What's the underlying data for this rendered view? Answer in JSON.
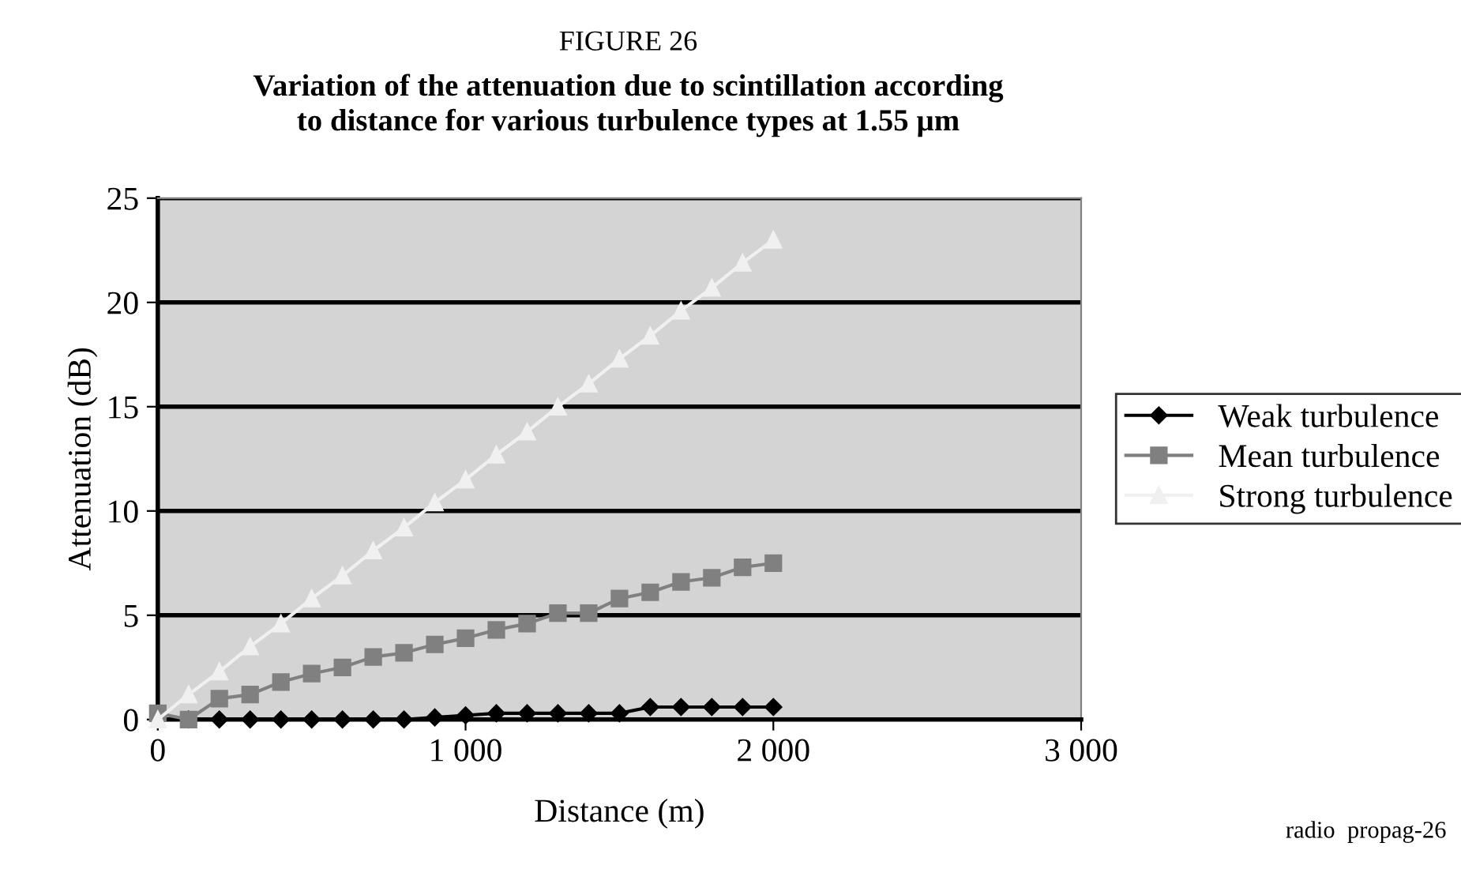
{
  "chart_data": {
    "type": "line",
    "title": "Variation of the attenuation due to scintillation according\nto distance for various turbulence types at 1.55 µm",
    "subtitle": "FIGURE 26",
    "xlabel": "Distance (m)",
    "ylabel": "Attenuation (dB)",
    "x": [
      0,
      100,
      200,
      300,
      400,
      500,
      600,
      700,
      800,
      900,
      1000,
      1100,
      1200,
      1300,
      1400,
      1500,
      1600,
      1700,
      1800,
      1900,
      2000
    ],
    "series": [
      {
        "name": "Weak turbulence",
        "color": "#000000",
        "marker": "diamond",
        "values": [
          0,
          0,
          0,
          0,
          0,
          0,
          0,
          0,
          0,
          0.1,
          0.2,
          0.3,
          0.3,
          0.3,
          0.3,
          0.3,
          0.6,
          0.6,
          0.6,
          0.6,
          0.6
        ]
      },
      {
        "name": "Mean turbulence",
        "color": "#808080",
        "marker": "square",
        "values": [
          0.3,
          0,
          1.0,
          1.2,
          1.8,
          2.2,
          2.5,
          3.0,
          3.2,
          3.6,
          3.9,
          4.3,
          4.6,
          5.1,
          5.1,
          5.8,
          6.1,
          6.6,
          6.8,
          7.3,
          7.5
        ]
      },
      {
        "name": "Strong turbulence",
        "color": "#f0f0f0",
        "marker": "triangle",
        "values": [
          0,
          1.2,
          2.3,
          3.5,
          4.6,
          5.8,
          6.9,
          8.1,
          9.2,
          10.4,
          11.5,
          12.7,
          13.8,
          15,
          16.1,
          17.3,
          18.4,
          19.6,
          20.7,
          21.9,
          23
        ]
      }
    ],
    "xlim": [
      0,
      3000
    ],
    "xticks": [
      {
        "value": 0,
        "label": "0"
      },
      {
        "value": 1000,
        "label": "1 000"
      },
      {
        "value": 2000,
        "label": "2 000"
      },
      {
        "value": 3000,
        "label": "3 000"
      }
    ],
    "ylim": [
      0,
      25
    ],
    "yticks": [
      0,
      5,
      10,
      15,
      20,
      25
    ],
    "grid": "y",
    "legend": "right",
    "line_style": "solid",
    "annotations": [
      "radio  propag-26"
    ]
  }
}
